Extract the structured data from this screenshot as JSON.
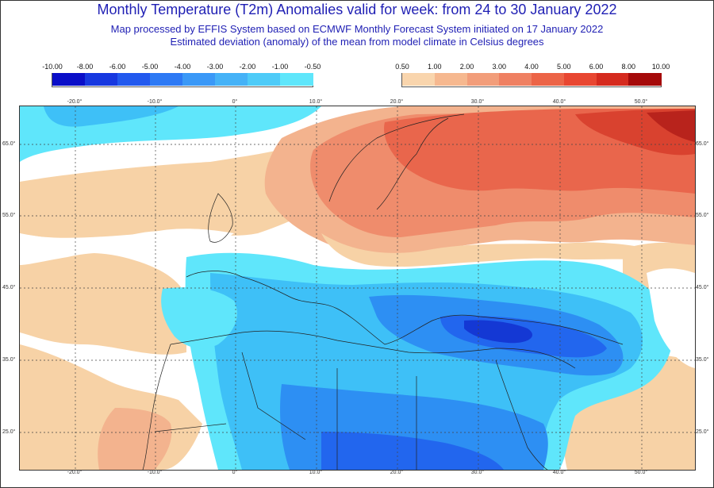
{
  "header": {
    "title": "Monthly Temperature (T2m) Anomalies valid for week: from 24 to 30 January 2022",
    "subtitle_1": "Map processed by EFFIS System based on ECMWF Monthly Forecast System initiated on 17 January 2022",
    "subtitle_2": "Estimated deviation (anomaly) of the mean from model climate in Celsius degrees"
  },
  "legend_negative": {
    "ticks": [
      "-10.00",
      "-8.00",
      "-6.00",
      "-5.00",
      "-4.00",
      "-3.00",
      "-2.00",
      "-1.00",
      "-0.50"
    ],
    "colors": [
      "#0a0ec8",
      "#1738e0",
      "#2259ee",
      "#2d79f4",
      "#3a98f7",
      "#45b2f7",
      "#4ecbf8",
      "#5fe6fb"
    ]
  },
  "legend_positive": {
    "ticks": [
      "0.50",
      "1.00",
      "2.00",
      "3.00",
      "4.00",
      "5.00",
      "6.00",
      "8.00",
      "10.00"
    ],
    "colors": [
      "#f9d5ad",
      "#f6b88f",
      "#f29d7a",
      "#ef8062",
      "#ec6447",
      "#e84631",
      "#d52a1e",
      "#a50a0a"
    ]
  },
  "map": {
    "lon_labels": [
      "-20.0°",
      "-10.0°",
      "0°",
      "10.0°",
      "20.0°",
      "30.0°",
      "40.0°",
      "50.0°"
    ],
    "lat_labels": [
      "65.0°",
      "55.0°",
      "45.0°",
      "35.0°",
      "25.0°"
    ],
    "colors": {
      "white": "#ffffff",
      "pale_orange": "#f7d2a6",
      "light_orange": "#f3b38e",
      "orange": "#ef8c6c",
      "red_orange": "#e9664c",
      "red": "#d9422f",
      "dark_red": "#b8231c",
      "cyan": "#5fe6fb",
      "light_blue": "#3ec0f7",
      "blue": "#2d8ff3",
      "mid_blue": "#2266ee",
      "dark_blue": "#1438d4"
    }
  }
}
